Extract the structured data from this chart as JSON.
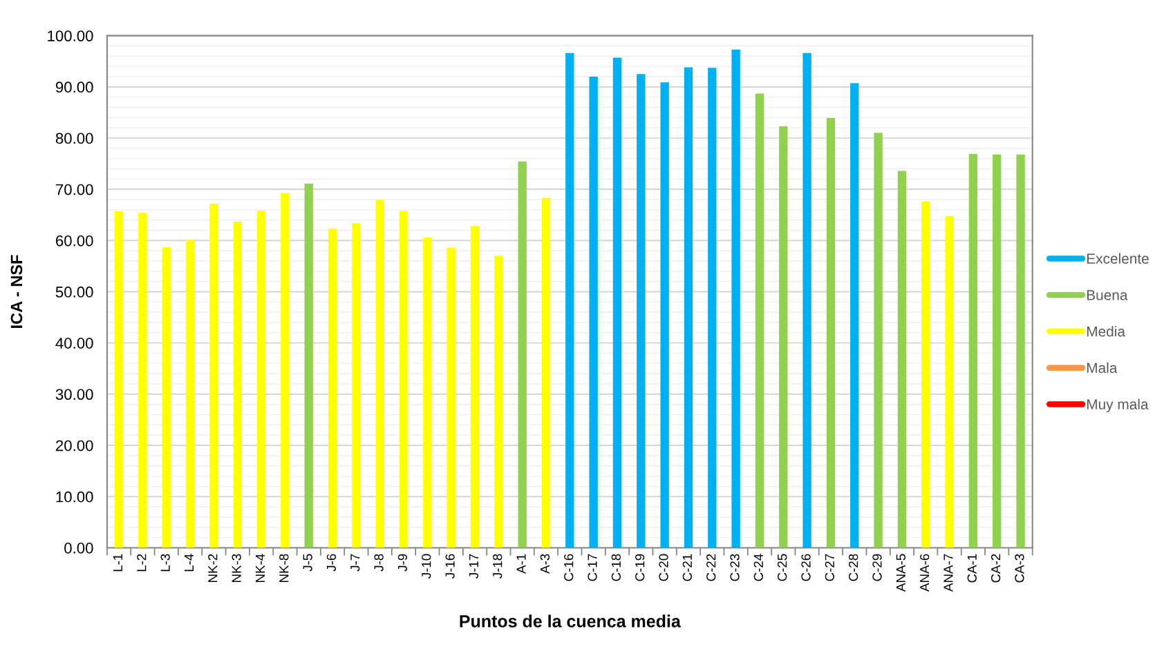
{
  "chart_data": {
    "type": "bar",
    "xlabel": "Puntos de la cuenca media",
    "ylabel": "ICA - NSF",
    "categories": [
      "L-1",
      "L-2",
      "L-3",
      "L-4",
      "NK-2",
      "NK-3",
      "NK-4",
      "NK-8",
      "J-5",
      "J-6",
      "J-7",
      "J-8",
      "J-9",
      "J-10",
      "J-16",
      "J-17",
      "J-18",
      "A-1",
      "A-3",
      "C-16",
      "C-17",
      "C-18",
      "C-19",
      "C-20",
      "C-21",
      "C-22",
      "C-23",
      "C-24",
      "C-25",
      "C-26",
      "C-27",
      "C-28",
      "C-29",
      "ANA-5",
      "ANA-6",
      "ANA-7",
      "CA-1",
      "CA-2",
      "CA-3"
    ],
    "series": [
      {
        "name": "Excelente",
        "color": "#00b0f0",
        "values": [
          null,
          null,
          null,
          null,
          null,
          null,
          null,
          null,
          null,
          null,
          null,
          null,
          null,
          null,
          null,
          null,
          null,
          null,
          null,
          96.6,
          92.0,
          95.7,
          92.5,
          90.9,
          93.8,
          93.7,
          97.3,
          null,
          null,
          96.6,
          null,
          90.7,
          null,
          null,
          null,
          null,
          null,
          null,
          null
        ]
      },
      {
        "name": "Buena",
        "color": "#92d050",
        "values": [
          null,
          null,
          null,
          null,
          null,
          null,
          null,
          null,
          71.1,
          null,
          null,
          null,
          null,
          null,
          null,
          null,
          null,
          75.4,
          null,
          null,
          null,
          null,
          null,
          null,
          null,
          null,
          null,
          88.7,
          82.3,
          null,
          83.9,
          null,
          81.0,
          73.6,
          null,
          null,
          76.9,
          76.8,
          76.8
        ]
      },
      {
        "name": "Media",
        "color": "#ffff00",
        "values": [
          65.7,
          65.4,
          58.7,
          60.2,
          67.2,
          63.7,
          65.8,
          69.2,
          null,
          62.3,
          63.4,
          67.9,
          65.8,
          60.6,
          58.6,
          62.8,
          57.0,
          null,
          68.3,
          null,
          null,
          null,
          null,
          null,
          null,
          null,
          null,
          null,
          null,
          null,
          null,
          null,
          null,
          null,
          67.6,
          64.8,
          null,
          null,
          null
        ]
      },
      {
        "name": "Mala",
        "color": "#f79646",
        "values": [
          null,
          null,
          null,
          null,
          null,
          null,
          null,
          null,
          null,
          null,
          null,
          null,
          null,
          null,
          null,
          null,
          null,
          null,
          null,
          null,
          null,
          null,
          null,
          null,
          null,
          null,
          null,
          null,
          null,
          null,
          null,
          null,
          null,
          null,
          null,
          null,
          null,
          null,
          null
        ]
      },
      {
        "name": "Muy mala",
        "color": "#ff0000",
        "values": [
          null,
          null,
          null,
          null,
          null,
          null,
          null,
          null,
          null,
          null,
          null,
          null,
          null,
          null,
          null,
          null,
          null,
          null,
          null,
          null,
          null,
          null,
          null,
          null,
          null,
          null,
          null,
          null,
          null,
          null,
          null,
          null,
          null,
          null,
          null,
          null,
          null,
          null,
          null
        ]
      }
    ],
    "stacked": true,
    "ylim": [
      0,
      100
    ],
    "yticks": [
      {
        "value": 0,
        "label": "0.00"
      },
      {
        "value": 10,
        "label": "10.00"
      },
      {
        "value": 20,
        "label": "20.00"
      },
      {
        "value": 30,
        "label": "30.00"
      },
      {
        "value": 40,
        "label": "40.00"
      },
      {
        "value": 50,
        "label": "50.00"
      },
      {
        "value": 60,
        "label": "60.00"
      },
      {
        "value": 70,
        "label": "70.00"
      },
      {
        "value": 80,
        "label": "80.00"
      },
      {
        "value": 90,
        "label": "90.00"
      },
      {
        "value": 100,
        "label": "100.00"
      }
    ],
    "grid": "y",
    "legend": "right"
  }
}
